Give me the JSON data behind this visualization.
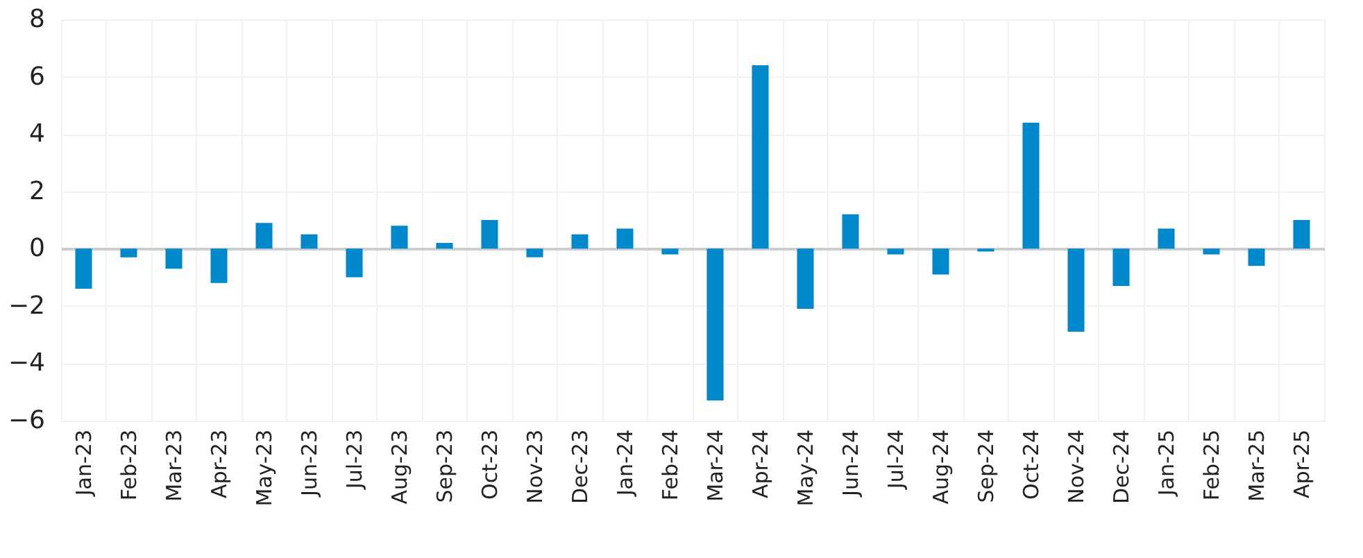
{
  "chart_data": {
    "type": "bar",
    "categories": [
      "Jan-23",
      "Feb-23",
      "Mar-23",
      "Apr-23",
      "May-23",
      "Jun-23",
      "Jul-23",
      "Aug-23",
      "Sep-23",
      "Oct-23",
      "Nov-23",
      "Dec-23",
      "Jan-24",
      "Feb-24",
      "Mar-24",
      "Apr-24",
      "May-24",
      "Jun-24",
      "Jul-24",
      "Aug-24",
      "Sep-24",
      "Oct-24",
      "Nov-24",
      "Dec-24",
      "Jan-25",
      "Feb-25",
      "Mar-25",
      "Apr-25"
    ],
    "values": [
      -1.4,
      -0.3,
      -0.7,
      -1.2,
      0.9,
      0.5,
      -1.0,
      0.8,
      0.2,
      1.0,
      -0.3,
      0.5,
      0.7,
      -0.2,
      -5.3,
      6.4,
      -2.1,
      1.2,
      -0.2,
      -0.9,
      -0.1,
      4.4,
      -2.9,
      -1.3,
      0.7,
      -0.2,
      -0.6,
      1.0
    ],
    "color": "#0088cc",
    "ylim": [
      -6,
      8
    ],
    "yticks": [
      -6,
      -4,
      -2,
      0,
      2,
      4,
      6,
      8
    ],
    "grid": true
  }
}
